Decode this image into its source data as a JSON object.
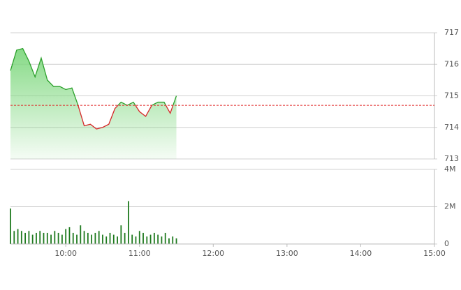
{
  "chart_data": [
    {
      "type": "line",
      "color": "#2ca02c",
      "below_color": "#d62728",
      "x": [
        "09:15",
        "09:20",
        "09:25",
        "09:30",
        "09:35",
        "09:40",
        "09:45",
        "09:50",
        "09:55",
        "10:00",
        "10:05",
        "10:10",
        "10:15",
        "10:20",
        "10:25",
        "10:30",
        "10:35",
        "10:40",
        "10:45",
        "10:50",
        "10:55",
        "11:00",
        "11:05",
        "11:10",
        "11:15",
        "11:20",
        "11:25",
        "11:30"
      ],
      "values": [
        715.8,
        716.45,
        716.5,
        716.1,
        715.6,
        716.2,
        715.5,
        715.3,
        715.3,
        715.2,
        715.25,
        714.7,
        714.05,
        714.1,
        713.95,
        714.0,
        714.1,
        714.6,
        714.8,
        714.7,
        714.8,
        714.5,
        714.35,
        714.7,
        714.8,
        714.8,
        714.45,
        715.0
      ],
      "reference": 714.7,
      "reference_color": "#e02020",
      "xlim": [
        "09:15",
        "15:00"
      ],
      "ylim": [
        713,
        717
      ],
      "yticks": [
        713,
        714,
        715,
        716,
        717
      ],
      "grid": true
    },
    {
      "type": "bar",
      "color": "#1f7a1f",
      "x": [
        "09:15",
        "09:18",
        "09:21",
        "09:24",
        "09:27",
        "09:30",
        "09:33",
        "09:36",
        "09:39",
        "09:42",
        "09:45",
        "09:48",
        "09:51",
        "09:54",
        "09:57",
        "10:00",
        "10:03",
        "10:06",
        "10:09",
        "10:12",
        "10:15",
        "10:18",
        "10:21",
        "10:24",
        "10:27",
        "10:30",
        "10:33",
        "10:36",
        "10:39",
        "10:42",
        "10:45",
        "10:48",
        "10:51",
        "10:54",
        "10:57",
        "11:00",
        "11:03",
        "11:06",
        "11:09",
        "11:12",
        "11:15",
        "11:18",
        "11:21",
        "11:24",
        "11:27",
        "11:30"
      ],
      "values": [
        1.9,
        0.7,
        0.8,
        0.7,
        0.6,
        0.7,
        0.5,
        0.6,
        0.7,
        0.6,
        0.6,
        0.5,
        0.7,
        0.6,
        0.5,
        0.8,
        0.9,
        0.6,
        0.5,
        1.0,
        0.7,
        0.6,
        0.5,
        0.6,
        0.7,
        0.5,
        0.4,
        0.6,
        0.5,
        0.4,
        1.0,
        0.6,
        2.3,
        0.5,
        0.4,
        0.7,
        0.6,
        0.4,
        0.5,
        0.6,
        0.5,
        0.4,
        0.6,
        0.3,
        0.4,
        0.3
      ],
      "xlim": [
        "09:15",
        "15:00"
      ],
      "xticks": [
        "10:00",
        "11:00",
        "12:00",
        "13:00",
        "14:00",
        "15:00"
      ],
      "ylim": [
        0,
        4
      ],
      "yticks": [
        0,
        {
          "value": 2,
          "label": "2M"
        },
        {
          "value": 4,
          "label": "4M"
        }
      ],
      "grid": true
    }
  ]
}
